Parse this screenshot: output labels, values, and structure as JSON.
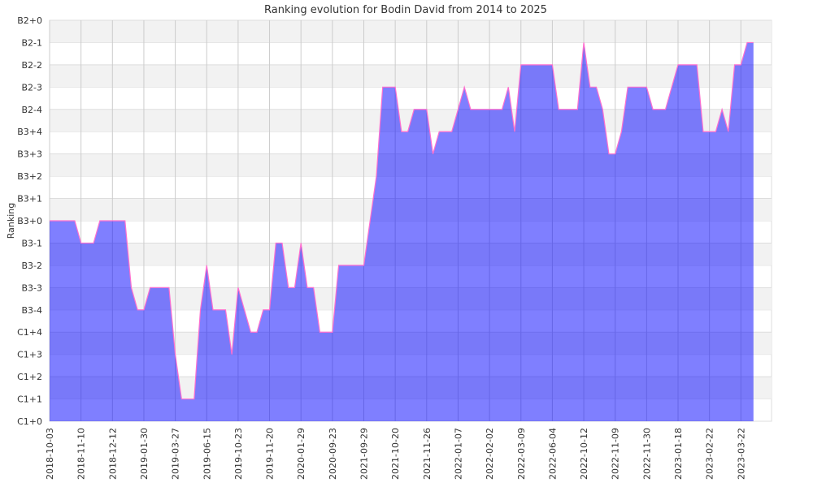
{
  "chart_data": {
    "type": "area",
    "title": "Ranking evolution for Bodin David from 2014 to 2025",
    "xlabel": "",
    "ylabel": "Ranking",
    "y_categories": [
      "C1+0",
      "C1+1",
      "C1+2",
      "C1+3",
      "C1+4",
      "B3-4",
      "B3-3",
      "B3-2",
      "B3-1",
      "B3+0",
      "B3+1",
      "B3+2",
      "B3+3",
      "B3+4",
      "B2-4",
      "B2-3",
      "B2-2",
      "B2-1",
      "B2+0"
    ],
    "x_tick_labels": [
      "2018-10-03",
      "2018-11-10",
      "2018-12-12",
      "2019-01-30",
      "2019-03-27",
      "2019-06-15",
      "2019-10-23",
      "2019-11-20",
      "2020-01-29",
      "2020-09-23",
      "2021-09-29",
      "2021-10-20",
      "2021-11-26",
      "2022-01-07",
      "2022-02-02",
      "2022-03-09",
      "2022-06-04",
      "2022-10-12",
      "2022-11-09",
      "2022-11-30",
      "2023-01-18",
      "2023-02-22",
      "2023-03-22"
    ],
    "x_tick_every_n_points": 5,
    "values": [
      "B3+0",
      "B3+0",
      "B3+0",
      "B3+0",
      "B3+0",
      "B3-1",
      "B3-1",
      "B3-1",
      "B3+0",
      "B3+0",
      "B3+0",
      "B3+0",
      "B3+0",
      "B3-3",
      "B3-4",
      "B3-4",
      "B3-3",
      "B3-3",
      "B3-3",
      "B3-3",
      "C1+3",
      "C1+1",
      "C1+1",
      "C1+1",
      "B3-4",
      "B3-2",
      "B3-4",
      "B3-4",
      "B3-4",
      "C1+3",
      "B3-3",
      "B3-4",
      "C1+4",
      "C1+4",
      "B3-4",
      "B3-4",
      "B3-1",
      "B3-1",
      "B3-3",
      "B3-3",
      "B3-1",
      "B3-3",
      "B3-3",
      "C1+4",
      "C1+4",
      "C1+4",
      "B3-2",
      "B3-2",
      "B3-2",
      "B3-2",
      "B3-2",
      "B3+0",
      "B3+2",
      "B2-3",
      "B2-3",
      "B2-3",
      "B3+4",
      "B3+4",
      "B2-4",
      "B2-4",
      "B2-4",
      "B3+3",
      "B3+4",
      "B3+4",
      "B3+4",
      "B2-4",
      "B2-3",
      "B2-4",
      "B2-4",
      "B2-4",
      "B2-4",
      "B2-4",
      "B2-4",
      "B2-3",
      "B3+4",
      "B2-2",
      "B2-2",
      "B2-2",
      "B2-2",
      "B2-2",
      "B2-2",
      "B2-4",
      "B2-4",
      "B2-4",
      "B2-4",
      "B2-1",
      "B2-3",
      "B2-3",
      "B2-4",
      "B3+3",
      "B3+3",
      "B3+4",
      "B2-3",
      "B2-3",
      "B2-3",
      "B2-3",
      "B2-4",
      "B2-4",
      "B2-4",
      "B2-3",
      "B2-2",
      "B2-2",
      "B2-2",
      "B2-2",
      "B3+4",
      "B3+4",
      "B3+4",
      "B2-4",
      "B3+4",
      "B2-2",
      "B2-2",
      "B2-1",
      "B2-1"
    ],
    "grid": true,
    "legend": "none",
    "colors": {
      "fill": "#0000ff",
      "fill_opacity": 0.5,
      "line": "#ff6fcf",
      "band": "#f2f2f2",
      "gridline": "#cccccc"
    }
  }
}
